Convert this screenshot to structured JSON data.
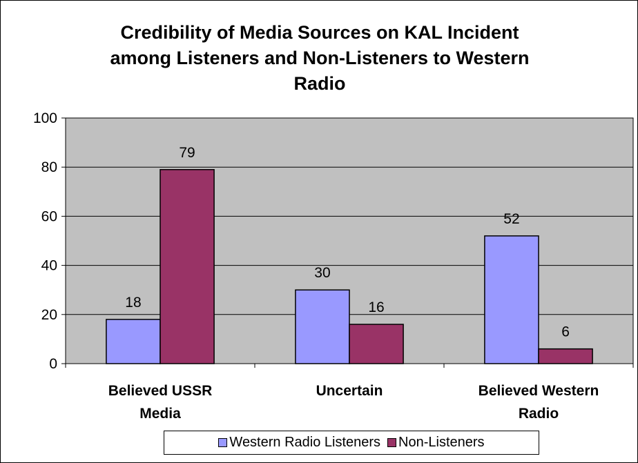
{
  "chart_data": {
    "type": "bar",
    "title": "Credibility of Media Sources on KAL Incident among Listeners and Non-Listeners to Western Radio",
    "title_lines": [
      "Credibility of Media Sources on KAL Incident",
      "among Listeners and Non-Listeners to Western",
      "Radio"
    ],
    "categories": [
      "Believed USSR Media",
      "Uncertain",
      "Believed Western Radio"
    ],
    "category_lines": [
      [
        "Believed USSR",
        "Media"
      ],
      [
        "Uncertain"
      ],
      [
        "Believed Western",
        "Radio"
      ]
    ],
    "series": [
      {
        "name": "Western Radio Listeners",
        "values": [
          18,
          30,
          52
        ],
        "color": "#9999ff"
      },
      {
        "name": "Non-Listeners",
        "values": [
          79,
          16,
          6
        ],
        "color": "#993366"
      }
    ],
    "ylim": [
      0,
      100
    ],
    "yticks": [
      0,
      20,
      40,
      60,
      80,
      100
    ],
    "xlabel": "",
    "ylabel": "",
    "grid": true,
    "legend_position": "bottom",
    "plot_background": "#c0c0c0"
  }
}
